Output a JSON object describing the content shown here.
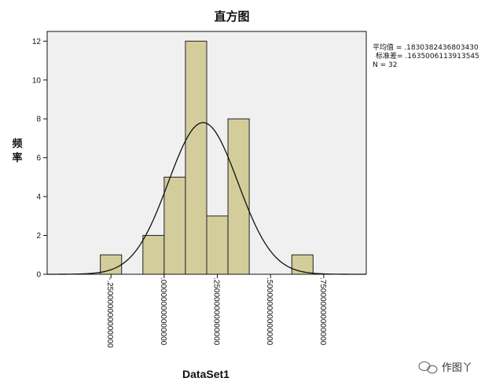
{
  "chart_data": {
    "type": "histogram",
    "title": "直方图",
    "ylabel": [
      "频",
      "率"
    ],
    "xlabel": "DataSet1",
    "y_ticks": [
      0,
      2,
      4,
      6,
      8,
      10,
      12
    ],
    "ylim": [
      0,
      12.5
    ],
    "xlim": [
      -0.55,
      0.95
    ],
    "x_ticks": [
      {
        "value": -0.25,
        "label": "-.250000000000000"
      },
      {
        "value": 0.0,
        "label": ".000000000000000"
      },
      {
        "value": 0.25,
        "label": ".250000000000000"
      },
      {
        "value": 0.5,
        "label": ".500000000000000"
      },
      {
        "value": 0.75,
        "label": ".750000000000000"
      }
    ],
    "bins": [
      {
        "start": -0.3,
        "end": -0.2,
        "count": 1
      },
      {
        "start": -0.1,
        "end": 0.0,
        "count": 2
      },
      {
        "start": 0.0,
        "end": 0.1,
        "count": 5
      },
      {
        "start": 0.1,
        "end": 0.2,
        "count": 12
      },
      {
        "start": 0.2,
        "end": 0.3,
        "count": 3
      },
      {
        "start": 0.3,
        "end": 0.4,
        "count": 8
      },
      {
        "start": 0.6,
        "end": 0.7,
        "count": 1
      }
    ],
    "normal_curve": {
      "mean": 0.183038243680343,
      "std": 0.1635006113913545,
      "n": 32,
      "bin_width": 0.1
    },
    "grid": false,
    "colors": {
      "bar_fill": "#d3cd9b",
      "bar_stroke": "#222222",
      "plot_bg": "#f0f0f0",
      "curve": "#111111"
    }
  },
  "stats": {
    "mean_line": "平均值 = .1830382436803430",
    "std_line": "标准差= .1635006113913545",
    "n_line": "N = 32"
  },
  "watermark": {
    "icon": "wechat-icon",
    "text": "作图丫"
  }
}
